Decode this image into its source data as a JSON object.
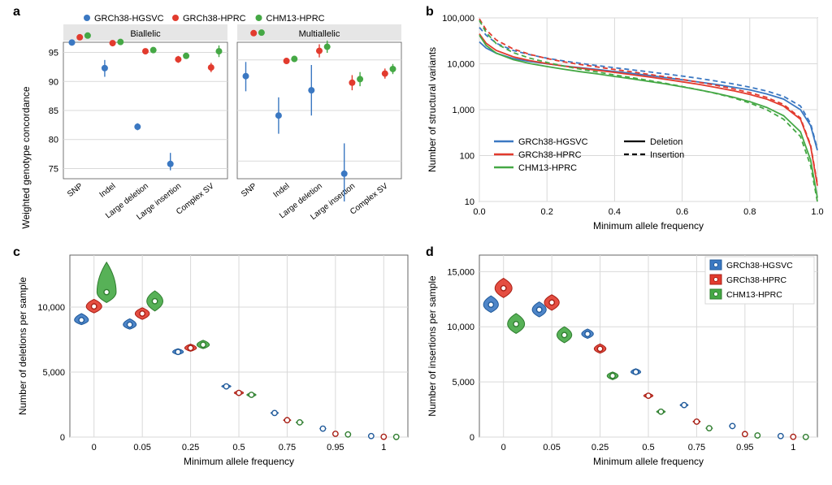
{
  "colors": {
    "blue": "#3b78c2",
    "red": "#e23b2e",
    "green": "#45a845",
    "axis": "#555555",
    "grid": "#d9d9d9",
    "facet_bg": "#e6e6e6",
    "panel_bg": "#ffffff",
    "text": "#000000",
    "violin_stroke_blue": "#205a9a",
    "violin_stroke_red": "#a81f15",
    "violin_stroke_green": "#2f7d2f"
  },
  "series_labels": {
    "blue": "GRCh38-HGSVC",
    "red": "GRCh38-HPRC",
    "green": "CHM13-HPRC"
  },
  "panel_labels": {
    "a": "a",
    "b": "b",
    "c": "c",
    "d": "d"
  },
  "panel_a": {
    "type": "dot-interval-facets",
    "ylabel": "Weighted genotype concordance",
    "label_fontsize": 12,
    "tick_fontsize": 11,
    "facets": [
      {
        "title": "Biallelic",
        "yticks": [
          75,
          80,
          85,
          90,
          95
        ],
        "categories": [
          "SNP",
          "Indel",
          "Large deletion",
          "Large insertion",
          "Complex SV"
        ],
        "points": {
          "blue": [
            {
              "y": 96.7,
              "lo": 96.5,
              "hi": 96.9
            },
            {
              "y": 92.3,
              "lo": 90.8,
              "hi": 93.7
            },
            {
              "y": 82.2,
              "lo": 81.6,
              "hi": 82.8
            },
            {
              "y": 75.8,
              "lo": 74.7,
              "hi": 77.7
            },
            null
          ],
          "red": [
            {
              "y": 97.6,
              "lo": 97.5,
              "hi": 97.7
            },
            {
              "y": 96.6,
              "lo": 96.4,
              "hi": 96.8
            },
            {
              "y": 95.2,
              "lo": 94.7,
              "hi": 95.7
            },
            {
              "y": 93.8,
              "lo": 93.2,
              "hi": 94.4
            },
            {
              "y": 92.4,
              "lo": 91.6,
              "hi": 93.2
            }
          ],
          "green": [
            {
              "y": 97.9,
              "lo": 97.8,
              "hi": 98.0
            },
            {
              "y": 96.8,
              "lo": 96.6,
              "hi": 97.0
            },
            {
              "y": 95.4,
              "lo": 94.9,
              "hi": 95.8
            },
            {
              "y": 94.4,
              "lo": 93.9,
              "hi": 94.9
            },
            {
              "y": 95.2,
              "lo": 94.2,
              "hi": 96.2
            }
          ]
        }
      },
      {
        "title": "Multiallelic",
        "yticks": [
          60,
          70,
          80
        ],
        "categories": [
          "SNP",
          "Indel",
          "Large deletion",
          "Large insertion",
          "Complex SV"
        ],
        "points": {
          "blue": [
            {
              "y": 76.8,
              "lo": 73.8,
              "hi": 79.6
            },
            {
              "y": 69.0,
              "lo": 65.4,
              "hi": 72.6
            },
            {
              "y": 74.0,
              "lo": 69.0,
              "hi": 79.0
            },
            {
              "y": 57.5,
              "lo": 52.0,
              "hi": 63.5
            },
            null
          ],
          "red": [
            {
              "y": 85.3,
              "lo": 84.9,
              "hi": 85.7
            },
            {
              "y": 79.8,
              "lo": 79.2,
              "hi": 80.4
            },
            {
              "y": 81.8,
              "lo": 80.5,
              "hi": 83.1
            },
            {
              "y": 75.5,
              "lo": 74.0,
              "hi": 77.0
            },
            {
              "y": 77.3,
              "lo": 76.3,
              "hi": 78.3
            }
          ],
          "green": [
            {
              "y": 85.4,
              "lo": 85.0,
              "hi": 85.8
            },
            {
              "y": 80.2,
              "lo": 79.6,
              "hi": 80.8
            },
            {
              "y": 82.6,
              "lo": 81.4,
              "hi": 83.8
            },
            {
              "y": 76.2,
              "lo": 74.8,
              "hi": 77.6
            },
            {
              "y": 78.2,
              "lo": 77.2,
              "hi": 79.2
            }
          ]
        }
      }
    ],
    "dodge": 0.24,
    "marker_r": 4,
    "err_width": 1.4
  },
  "panel_b": {
    "type": "line-log",
    "xlabel": "Minimum allele frequency",
    "ylabel": "Number of structural variants",
    "label_fontsize": 12,
    "tick_fontsize": 11,
    "xlim": [
      0,
      1.0
    ],
    "xticks": [
      0,
      0.2,
      0.4,
      0.6,
      0.8,
      1.0
    ],
    "yticks": [
      10,
      100,
      1000,
      10000,
      100000
    ],
    "ytick_labels": [
      "10",
      "100",
      "1,000",
      "10,000",
      "100,000"
    ],
    "line_width": 1.8,
    "dash_pattern": "6,4",
    "legend_colors": [
      {
        "color": "blue",
        "label": "GRCh38-HGSVC"
      },
      {
        "color": "red",
        "label": "GRCh38-HPRC"
      },
      {
        "color": "green",
        "label": "CHM13-HPRC"
      }
    ],
    "legend_linetype": [
      {
        "style": "solid",
        "label": "Deletion"
      },
      {
        "style": "dashed",
        "label": "Insertion"
      }
    ],
    "x": [
      0.0,
      0.02,
      0.05,
      0.1,
      0.15,
      0.2,
      0.25,
      0.3,
      0.35,
      0.4,
      0.45,
      0.5,
      0.55,
      0.6,
      0.65,
      0.7,
      0.75,
      0.8,
      0.85,
      0.9,
      0.95,
      0.98,
      1.0
    ],
    "series": {
      "blue_solid": [
        30000,
        22000,
        17000,
        13000,
        11200,
        10000,
        9000,
        8200,
        7500,
        6800,
        6200,
        5600,
        5000,
        4500,
        4000,
        3550,
        3100,
        2700,
        2200,
        1700,
        1000,
        450,
        130
      ],
      "blue_dashed": [
        62000,
        42000,
        28000,
        19500,
        15700,
        13200,
        11500,
        10200,
        9100,
        8200,
        7400,
        6700,
        6000,
        5400,
        4800,
        4200,
        3650,
        3100,
        2550,
        1950,
        1200,
        500,
        140
      ],
      "red_solid": [
        45000,
        28000,
        19500,
        14200,
        11700,
        10100,
        8900,
        8000,
        7200,
        6500,
        5800,
        5200,
        4600,
        4050,
        3550,
        3050,
        2600,
        2150,
        1700,
        1200,
        620,
        160,
        22
      ],
      "red_dashed": [
        95000,
        55000,
        33000,
        21000,
        16000,
        13000,
        11000,
        9600,
        8500,
        7500,
        6700,
        5900,
        5200,
        4550,
        3950,
        3400,
        2850,
        2350,
        1850,
        1300,
        660,
        170,
        24
      ],
      "green_solid": [
        42000,
        25000,
        17000,
        12300,
        10100,
        8700,
        7600,
        6700,
        6000,
        5300,
        4700,
        4150,
        3650,
        3150,
        2700,
        2280,
        1880,
        1500,
        1120,
        740,
        330,
        80,
        12
      ],
      "green_dashed": [
        88000,
        48000,
        27500,
        17500,
        13200,
        10700,
        8900,
        7600,
        6600,
        5700,
        5000,
        4350,
        3750,
        3200,
        2700,
        2250,
        1820,
        1400,
        1000,
        620,
        260,
        60,
        10
      ]
    }
  },
  "panel_c": {
    "type": "violin",
    "xlabel": "Minimum allele frequency",
    "ylabel": "Number of deletions per sample",
    "label_fontsize": 12,
    "tick_fontsize": 11,
    "xticks_labels": [
      "0",
      "0.05",
      "0.25",
      "0.5",
      "0.75",
      "0.95",
      "1"
    ],
    "yticks": [
      0,
      5000,
      10000
    ],
    "ytick_labels": [
      "0",
      "5,000",
      "10,000"
    ],
    "ylim": [
      0,
      14000
    ],
    "dodge": 0.26,
    "marker_r": 3.2,
    "categories": [
      "0",
      "0.05",
      "0.25",
      "0.5",
      "0.75",
      "0.95",
      "1"
    ],
    "groups": {
      "blue": [
        {
          "med": 9000,
          "lo": 8650,
          "hi": 9500,
          "w": 0.45
        },
        {
          "med": 8650,
          "lo": 8300,
          "hi": 9100,
          "w": 0.42
        },
        {
          "med": 6550,
          "lo": 6350,
          "hi": 6800,
          "w": 0.35
        },
        {
          "med": 3900,
          "lo": 3780,
          "hi": 4050,
          "w": 0.3
        },
        {
          "med": 1850,
          "lo": 1760,
          "hi": 1950,
          "w": 0.25
        },
        {
          "med": 650,
          "lo": 600,
          "hi": 700,
          "w": 0.2
        },
        {
          "med": 80,
          "lo": 60,
          "hi": 110,
          "w": 0.15
        }
      ],
      "red": [
        {
          "med": 10050,
          "lo": 9550,
          "hi": 10600,
          "w": 0.5
        },
        {
          "med": 9500,
          "lo": 9050,
          "hi": 9950,
          "w": 0.46
        },
        {
          "med": 6850,
          "lo": 6600,
          "hi": 7150,
          "w": 0.38
        },
        {
          "med": 3400,
          "lo": 3250,
          "hi": 3560,
          "w": 0.3
        },
        {
          "med": 1300,
          "lo": 1220,
          "hi": 1400,
          "w": 0.24
        },
        {
          "med": 250,
          "lo": 220,
          "hi": 290,
          "w": 0.18
        },
        {
          "med": 20,
          "lo": 12,
          "hi": 32,
          "w": 0.13
        }
      ],
      "green": [
        {
          "med": 11150,
          "lo": 10350,
          "hi": 13450,
          "w": 0.62
        },
        {
          "med": 10450,
          "lo": 9700,
          "hi": 11250,
          "w": 0.52
        },
        {
          "med": 7100,
          "lo": 6800,
          "hi": 7450,
          "w": 0.4
        },
        {
          "med": 3250,
          "lo": 3100,
          "hi": 3400,
          "w": 0.3
        },
        {
          "med": 1130,
          "lo": 1050,
          "hi": 1220,
          "w": 0.24
        },
        {
          "med": 200,
          "lo": 170,
          "hi": 240,
          "w": 0.17
        },
        {
          "med": 12,
          "lo": 6,
          "hi": 22,
          "w": 0.12
        }
      ]
    }
  },
  "panel_d": {
    "type": "violin",
    "xlabel": "Minimum allele frequency",
    "ylabel": "Number of insertions per sample",
    "label_fontsize": 12,
    "tick_fontsize": 11,
    "xticks_labels": [
      "0",
      "0.05",
      "0.25",
      "0.5",
      "0.75",
      "0.95",
      "1"
    ],
    "yticks": [
      0,
      5000,
      10000,
      15000
    ],
    "ytick_labels": [
      "0",
      "5,000",
      "10,000",
      "15,000"
    ],
    "ylim": [
      0,
      16500
    ],
    "dodge": 0.26,
    "marker_r": 3.2,
    "legend": true,
    "categories": [
      "0",
      "0.05",
      "0.25",
      "0.5",
      "0.75",
      "0.95",
      "1"
    ],
    "groups": {
      "blue": [
        {
          "med": 12000,
          "lo": 11300,
          "hi": 12800,
          "w": 0.48
        },
        {
          "med": 11550,
          "lo": 10900,
          "hi": 12250,
          "w": 0.45
        },
        {
          "med": 9350,
          "lo": 8950,
          "hi": 9800,
          "w": 0.38
        },
        {
          "med": 5900,
          "lo": 5650,
          "hi": 6200,
          "w": 0.32
        },
        {
          "med": 2900,
          "lo": 2750,
          "hi": 3070,
          "w": 0.26
        },
        {
          "med": 1000,
          "lo": 920,
          "hi": 1090,
          "w": 0.2
        },
        {
          "med": 90,
          "lo": 65,
          "hi": 120,
          "w": 0.14
        }
      ],
      "red": [
        {
          "med": 13500,
          "lo": 12650,
          "hi": 14400,
          "w": 0.55
        },
        {
          "med": 12200,
          "lo": 11500,
          "hi": 12900,
          "w": 0.48
        },
        {
          "med": 8000,
          "lo": 7600,
          "hi": 8450,
          "w": 0.38
        },
        {
          "med": 3750,
          "lo": 3550,
          "hi": 3960,
          "w": 0.3
        },
        {
          "med": 1400,
          "lo": 1300,
          "hi": 1510,
          "w": 0.24
        },
        {
          "med": 270,
          "lo": 235,
          "hi": 310,
          "w": 0.17
        },
        {
          "med": 22,
          "lo": 14,
          "hi": 35,
          "w": 0.12
        }
      ],
      "green": [
        {
          "med": 10250,
          "lo": 9400,
          "hi": 11200,
          "w": 0.55
        },
        {
          "med": 9250,
          "lo": 8550,
          "hi": 10000,
          "w": 0.48
        },
        {
          "med": 5550,
          "lo": 5200,
          "hi": 5900,
          "w": 0.36
        },
        {
          "med": 2300,
          "lo": 2140,
          "hi": 2470,
          "w": 0.28
        },
        {
          "med": 800,
          "lo": 730,
          "hi": 880,
          "w": 0.22
        },
        {
          "med": 150,
          "lo": 125,
          "hi": 180,
          "w": 0.16
        },
        {
          "med": 10,
          "lo": 5,
          "hi": 20,
          "w": 0.11
        }
      ]
    }
  }
}
